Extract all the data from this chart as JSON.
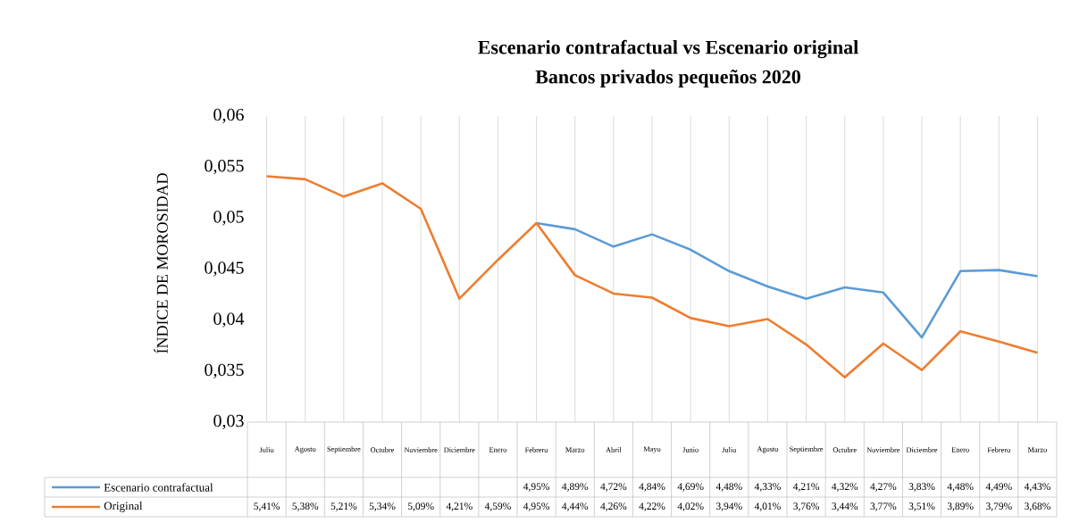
{
  "chart_data": {
    "type": "line",
    "title": "Escenario contrafactual vs Escenario original",
    "subtitle": "Bancos privados pequeños 2020",
    "ylabel": "ÍNDICE DE MOROSIDAD",
    "categories": [
      "Julio",
      "Agosto",
      "Septiembre",
      "Octubre",
      "Noviembre",
      "Diciembre",
      "Enero",
      "Febrero",
      "Marzo",
      "Abril",
      "Mayo",
      "Junio",
      "Julio",
      "Agosto",
      "Septiembre",
      "Octubre",
      "Noviembre",
      "Diciembre",
      "Enero",
      "Febrero",
      "Marzo"
    ],
    "series": [
      {
        "name": "Escenario contrafactual",
        "color": "#5b9bd5",
        "values": [
          null,
          null,
          null,
          null,
          null,
          null,
          null,
          0.0495,
          0.0489,
          0.0472,
          0.0484,
          0.0469,
          0.0448,
          0.0433,
          0.0421,
          0.0432,
          0.0427,
          0.0383,
          0.0448,
          0.0449,
          0.0443
        ],
        "value_labels": [
          null,
          null,
          null,
          null,
          null,
          null,
          null,
          "4,95%",
          "4,89%",
          "4,72%",
          "4,84%",
          "4,69%",
          "4,48%",
          "4,33%",
          "4,21%",
          "4,32%",
          "4,27%",
          "3,83%",
          "4,48%",
          "4,49%",
          "4,43%"
        ]
      },
      {
        "name": "Original",
        "color": "#ed7d31",
        "values": [
          0.0541,
          0.0538,
          0.0521,
          0.0534,
          0.0509,
          0.0421,
          0.0459,
          0.0495,
          0.0444,
          0.0426,
          0.0422,
          0.0402,
          0.0394,
          0.0401,
          0.0376,
          0.0344,
          0.0377,
          0.0351,
          0.0389,
          0.0379,
          0.0368
        ],
        "value_labels": [
          "5,41%",
          "5,38%",
          "5,21%",
          "5,34%",
          "5,09%",
          "4,21%",
          "4,59%",
          "4,95%",
          "4,44%",
          "4,26%",
          "4,22%",
          "4,02%",
          "3,94%",
          "4,01%",
          "3,76%",
          "3,44%",
          "3,77%",
          "3,51%",
          "3,89%",
          "3,79%",
          "3,68%"
        ]
      }
    ],
    "ylim": [
      0.03,
      0.06
    ],
    "yticks": [
      {
        "value": 0.03,
        "label": "0,03"
      },
      {
        "value": 0.035,
        "label": "0,035"
      },
      {
        "value": 0.04,
        "label": "0,04"
      },
      {
        "value": 0.045,
        "label": "0,045"
      },
      {
        "value": 0.05,
        "label": "0,05"
      },
      {
        "value": 0.055,
        "label": "0,055"
      },
      {
        "value": 0.06,
        "label": "0,06"
      }
    ],
    "grid": "x",
    "legend": "bottom"
  }
}
